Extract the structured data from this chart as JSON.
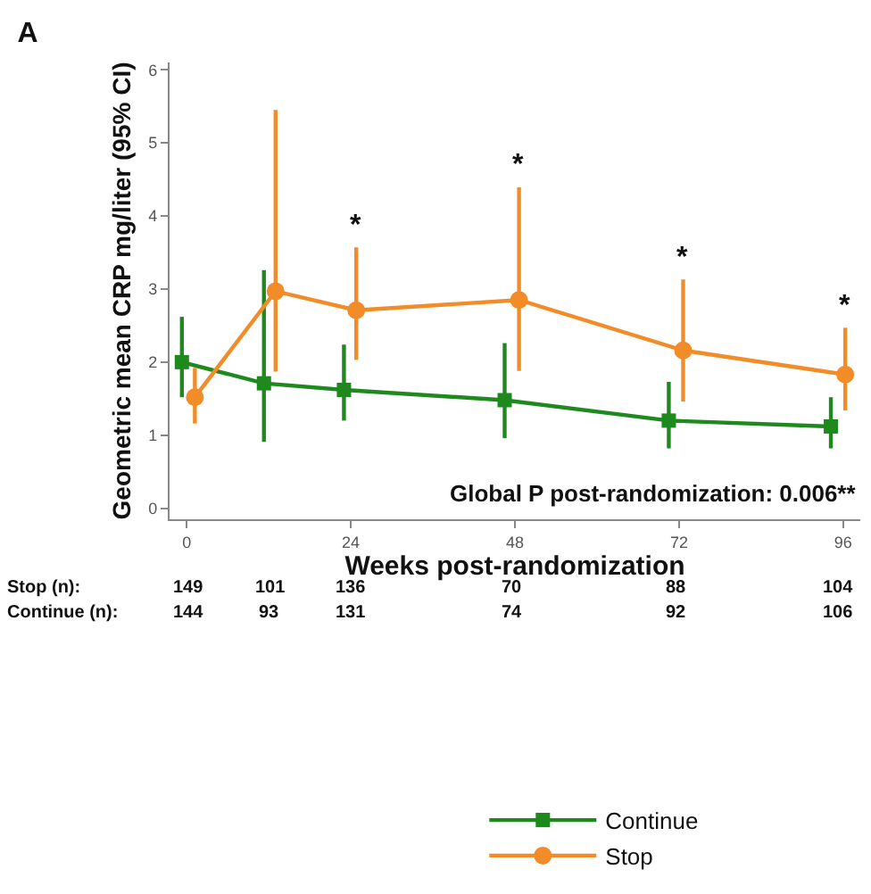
{
  "chart_data": {
    "type": "line",
    "title": "A",
    "xlabel": "Weeks post-randomization",
    "ylabel": "Geometric mean CRP mg/liter (95% CI)",
    "xlim": [
      -2.5,
      98.5
    ],
    "xticks": [
      0,
      24,
      48,
      72,
      96
    ],
    "ylim": [
      -0.15,
      6.1
    ],
    "yticks": [
      0,
      1,
      2,
      3,
      4,
      5,
      6
    ],
    "legend": "bottom",
    "series": [
      {
        "name": "Continue",
        "color": "#1e8a1e",
        "marker": "square",
        "x": [
          -0.7,
          11.3,
          23,
          46.5,
          70.5,
          94.2
        ],
        "values": [
          2.0,
          1.71,
          1.62,
          1.48,
          1.2,
          1.12
        ],
        "errors": [
          [
            1.52,
            2.62
          ],
          [
            0.91,
            3.26
          ],
          [
            1.2,
            2.24
          ],
          [
            0.96,
            2.26
          ],
          [
            0.82,
            1.73
          ],
          [
            0.82,
            1.52
          ]
        ]
      },
      {
        "name": "Stop",
        "color": "#f28c28",
        "marker": "circle",
        "x": [
          1.2,
          13,
          24.8,
          48.6,
          72.6,
          96.3
        ],
        "values": [
          1.52,
          2.97,
          2.71,
          2.85,
          2.16,
          1.83
        ],
        "errors": [
          [
            1.16,
            1.92
          ],
          [
            1.87,
            5.45
          ],
          [
            2.03,
            3.57
          ],
          [
            1.88,
            4.39
          ],
          [
            1.46,
            3.13
          ],
          [
            1.34,
            2.47
          ]
        ]
      }
    ],
    "annotations": [
      "Global P post-randomization: 0.006**",
      {
        "text": "*",
        "x": 24.8,
        "y": 3.57
      },
      {
        "text": "*",
        "x": 48.6,
        "y": 4.39
      },
      {
        "text": "*",
        "x": 72.6,
        "y": 3.13
      },
      {
        "text": "*",
        "x": 96.3,
        "y": 2.47
      },
      "Stop (n):",
      "149",
      "101",
      "136",
      "70",
      "88",
      "104",
      "Continue (n):",
      "144",
      "93",
      "131",
      "74",
      "92",
      "106"
    ]
  }
}
